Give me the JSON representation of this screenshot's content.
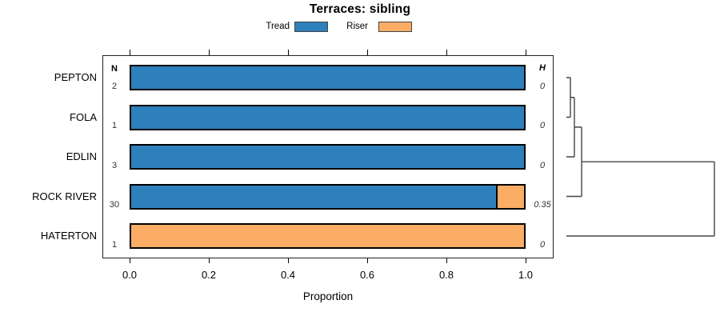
{
  "chart_data": {
    "type": "bar",
    "orientation": "horizontal-stacked",
    "title": "Terraces: sibling",
    "xlabel": "Proportion",
    "xlim": [
      0,
      1
    ],
    "xticks": {
      "values": [
        0.0,
        0.2,
        0.4,
        0.6,
        0.8,
        1.0
      ],
      "labels": [
        "0.0",
        "0.2",
        "0.4",
        "0.6",
        "0.8",
        "1.0"
      ]
    },
    "categories": [
      "PEPTON",
      "FOLA",
      "EDLIN",
      "ROCK RIVER",
      "HATERTON"
    ],
    "columns": {
      "n_header": "N",
      "h_header": "H"
    },
    "n_values": [
      "2",
      "1",
      "3",
      "30",
      "1"
    ],
    "h_values": [
      "0",
      "0",
      "0",
      "0.35",
      "0"
    ],
    "series": [
      {
        "name": "Tread",
        "color": "#2E80BD",
        "values": [
          1,
          1,
          1,
          0.93,
          0
        ]
      },
      {
        "name": "Riser",
        "color": "#FBAD66",
        "values": [
          0,
          0,
          0,
          0.07,
          1
        ]
      }
    ],
    "legend_position": "top",
    "grid": false,
    "dendrogram": {
      "side": "right",
      "leaves": [
        "PEPTON",
        "FOLA",
        "EDLIN",
        "ROCK RIVER",
        "HATERTON"
      ],
      "merges": [
        {
          "a": {
            "type": "leaf",
            "index": 0
          },
          "b": {
            "type": "leaf",
            "index": 1
          },
          "height": 0.027
        },
        {
          "a": {
            "type": "merge",
            "index": 0
          },
          "b": {
            "type": "leaf",
            "index": 2
          },
          "height": 0.054
        },
        {
          "a": {
            "type": "merge",
            "index": 1
          },
          "b": {
            "type": "leaf",
            "index": 3
          },
          "height": 0.103
        },
        {
          "a": {
            "type": "merge",
            "index": 2
          },
          "b": {
            "type": "leaf",
            "index": 4
          },
          "height": 1.0
        }
      ]
    }
  }
}
